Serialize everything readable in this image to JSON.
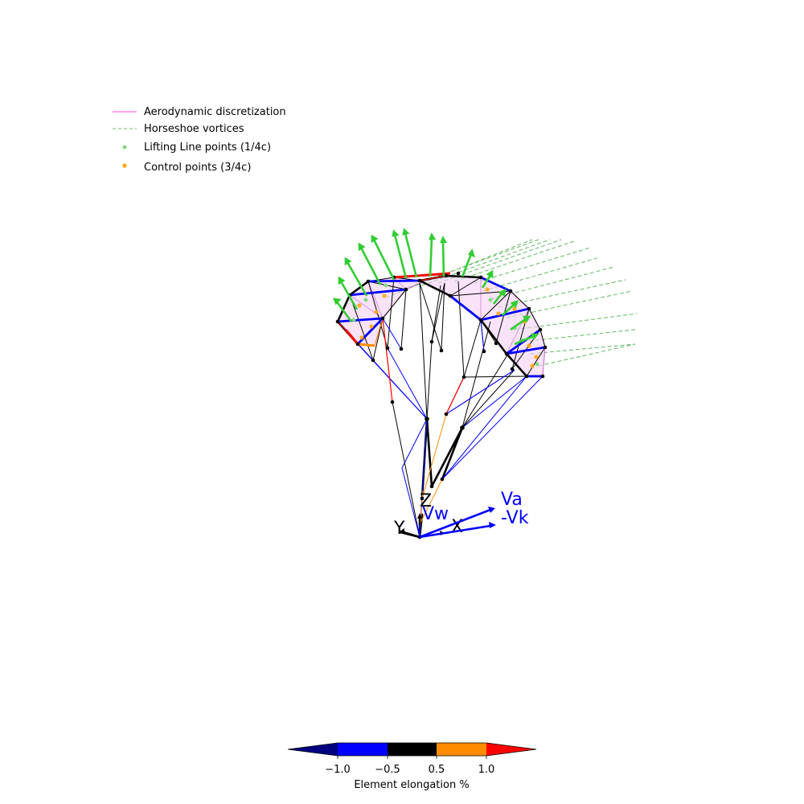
{
  "legend": {
    "entries": [
      {
        "label": "Aerodynamic discretization",
        "color": "#ff44ff",
        "style": "line"
      },
      {
        "label": "Horseshoe vortices",
        "color": "#2ca02c",
        "style": "dashed"
      },
      {
        "label": "Lifting Line points (1/4c)",
        "color": "#7fd97f",
        "style": "diamond"
      },
      {
        "label": "Control points (3/4c)",
        "color": "#ffa500",
        "style": "dot"
      }
    ]
  },
  "axes": {
    "x_label": "X",
    "y_label": "Y",
    "z_label": "Z"
  },
  "vectors": {
    "vw_label": "Vw",
    "va_label": "Va",
    "vk_label": "-Vk"
  },
  "colorbar": {
    "title": "Element elongation %",
    "ticks": [
      "−1.0",
      "−0.5",
      "0.5",
      "1.0"
    ],
    "colors": [
      "#000080",
      "#0000ff",
      "#000000",
      "#ff8c00",
      "#ff0000"
    ]
  }
}
